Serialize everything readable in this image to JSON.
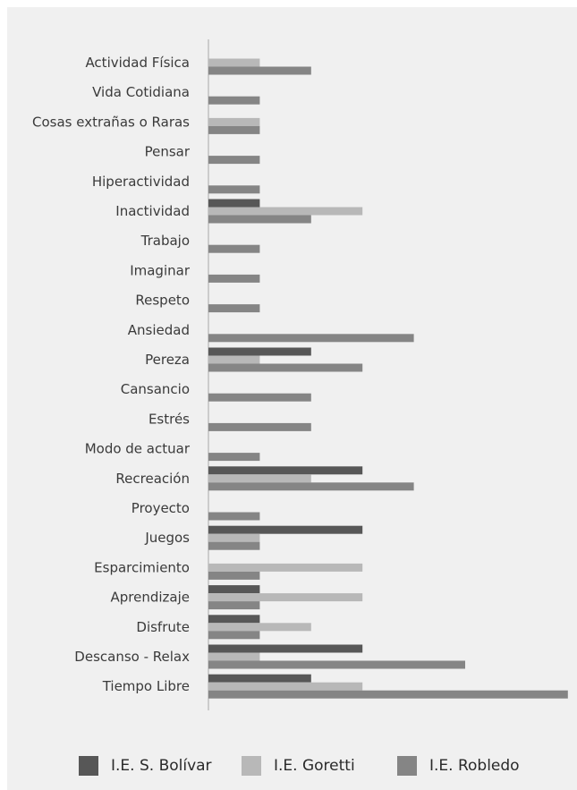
{
  "chart_data": {
    "type": "bar",
    "orientation": "horizontal",
    "categories": [
      "Actividad Física",
      "Vida Cotidiana",
      "Cosas extrañas o Raras",
      "Pensar",
      "Hiperactividad",
      "Inactividad",
      "Trabajo",
      "Imaginar",
      "Respeto",
      "Ansiedad",
      "Pereza",
      "Cansancio",
      "Estrés",
      "Modo de actuar",
      "Recreación",
      "Proyecto",
      "Juegos",
      "Esparcimiento",
      "Aprendizaje",
      "Disfrute",
      "Descanso - Relax",
      "Tiempo Libre"
    ],
    "series": [
      {
        "name": "I.E. S. Bolívar",
        "color": "#575757",
        "values": [
          0,
          0,
          0,
          0,
          0,
          1,
          0,
          0,
          0,
          0,
          2,
          0,
          0,
          0,
          3,
          0,
          3,
          0,
          1,
          1,
          3,
          2
        ]
      },
      {
        "name": "I.E. Goretti",
        "color": "#b8b8b8",
        "values": [
          1,
          0,
          1,
          0,
          0,
          3,
          0,
          0,
          0,
          0,
          1,
          0,
          0,
          0,
          2,
          0,
          1,
          3,
          3,
          2,
          1,
          3
        ]
      },
      {
        "name": "I.E. Robledo",
        "color": "#858585",
        "values": [
          2,
          1,
          1,
          1,
          1,
          2,
          1,
          1,
          1,
          4,
          3,
          2,
          2,
          1,
          4,
          1,
          1,
          1,
          1,
          1,
          5,
          7
        ]
      }
    ],
    "xlim": [
      0,
      7
    ],
    "grid": false,
    "legend_position": "bottom"
  }
}
